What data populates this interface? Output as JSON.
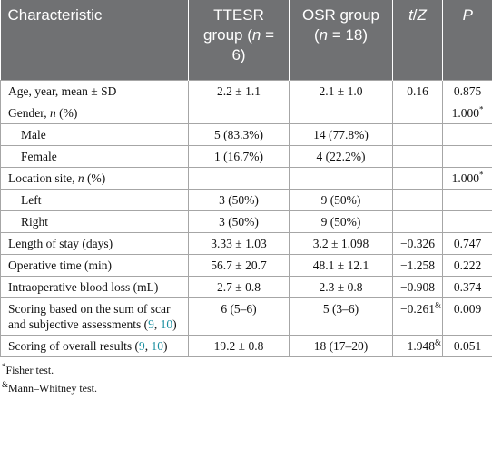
{
  "table": {
    "header": [
      [
        "Characteristic"
      ],
      [
        "TTESR group (",
        "n",
        " = 6)"
      ],
      [
        "OSR group (",
        "n",
        " = 18)"
      ],
      [
        "t",
        "/",
        "Z"
      ],
      [
        "P"
      ]
    ],
    "rows": [
      [
        [
          "Age, year, mean ± SD"
        ],
        "2.2 ± 1.1",
        "2.1 ± 1.0",
        "0.16",
        "0.875"
      ],
      [
        [
          "Gender, ",
          "n",
          " (%)"
        ],
        null,
        null,
        null,
        [
          "1.000",
          "*"
        ]
      ],
      [
        [
          "Male"
        ],
        "5 (83.3%)",
        "14 (77.8%)",
        null,
        null
      ],
      [
        [
          "Female"
        ],
        "1 (16.7%)",
        "4 (22.2%)",
        null,
        null
      ],
      [
        [
          "Location site, ",
          "n",
          " (%)"
        ],
        null,
        null,
        null,
        [
          "1.000",
          "*"
        ]
      ],
      [
        [
          "Left"
        ],
        "3 (50%)",
        "9 (50%)",
        null,
        null
      ],
      [
        [
          "Right"
        ],
        "3 (50%)",
        "9 (50%)",
        null,
        null
      ],
      [
        [
          "Length of stay (days)"
        ],
        "3.33 ± 1.03",
        "3.2 ± 1.098",
        "−0.326",
        "0.747"
      ],
      [
        [
          "Operative time (min)"
        ],
        "56.7 ± 20.7",
        "48.1 ± 12.1",
        "−1.258",
        "0.222"
      ],
      [
        [
          "Intraoperative blood loss (mL)"
        ],
        "2.7 ± 0.8",
        "2.3 ± 0.8",
        "−0.908",
        "0.374"
      ],
      [
        [
          "Scoring based on the sum of scar and subjective assessments (",
          "9",
          ", ",
          "10",
          ")"
        ],
        "6 (5–6)",
        "5 (3–6)",
        [
          "−0.261",
          "&"
        ],
        "0.009"
      ],
      [
        [
          "Scoring of overall results (",
          "9",
          ", ",
          "10",
          ")"
        ],
        "19.2 ± 0.8",
        "18 (17–20)",
        [
          "−1.948",
          "&"
        ],
        "0.051"
      ]
    ],
    "footnotes": [
      [
        "*",
        "Fisher test."
      ],
      [
        "&",
        "Mann–Whitney test."
      ]
    ]
  }
}
